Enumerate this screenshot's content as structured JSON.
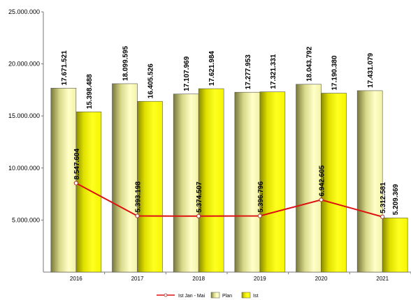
{
  "chart_data": {
    "type": "bar",
    "categories": [
      "2016",
      "2017",
      "2018",
      "2019",
      "2020",
      "2021"
    ],
    "series": [
      {
        "name": "Plan",
        "kind": "bar",
        "color": "#ffff99",
        "values": [
          17671521,
          18099595,
          17107969,
          17277953,
          18043792,
          17431079
        ],
        "labels": [
          "17.671.521",
          "18.099.595",
          "17.107.969",
          "17.277.953",
          "18.043.792",
          "17.431.079"
        ]
      },
      {
        "name": "Ist",
        "kind": "bar",
        "color": "#ffff00",
        "values": [
          15398488,
          16405526,
          17621984,
          17321331,
          17190380,
          5209369
        ],
        "labels": [
          "15.398.488",
          "16.405.526",
          "17.621.984",
          "17.321.331",
          "17.190.380",
          "5.209.369"
        ]
      },
      {
        "name": "Ist Jan - Mai",
        "kind": "line",
        "color": "#dd1111",
        "values": [
          8547604,
          5393198,
          5374507,
          5396796,
          6942605,
          5312581
        ],
        "labels": [
          "8.547.604",
          "5.393.198",
          "5.374.507",
          "5.396.796",
          "6.942.605",
          "5.312.581"
        ]
      }
    ],
    "ylim": [
      0,
      25000000
    ],
    "yticks": [
      5000000,
      10000000,
      15000000,
      20000000,
      25000000
    ],
    "ytick_labels": [
      "5.000.000",
      "10.000.000",
      "15.000.000",
      "20.000.000",
      "25.000.000"
    ],
    "legend_position": "bottom",
    "grid": false
  }
}
